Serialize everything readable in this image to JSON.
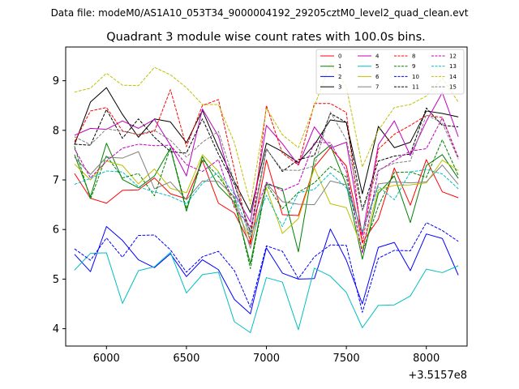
{
  "suptitle": "Data file: modeM0/AS1A10_053T34_9000004192_29205cztM0_level2_quad_clean.evt",
  "chart_data": {
    "type": "line",
    "title": "Quadrant 3 module wise count rates with 100.0s bins.",
    "xlabel": "",
    "ylabel": "",
    "x_offset_label": "+3.5157e8",
    "xlim": [
      5745,
      8255
    ],
    "ylim": [
      3.65,
      9.68
    ],
    "xticks": [
      6000,
      6500,
      7000,
      7500,
      8000
    ],
    "yticks": [
      4,
      5,
      6,
      7,
      8,
      9
    ],
    "grid": false,
    "legend_position": "top-right",
    "x": [
      5800,
      5900,
      6000,
      6100,
      6200,
      6300,
      6400,
      6500,
      6600,
      6700,
      6800,
      6900,
      7000,
      7100,
      7200,
      7300,
      7400,
      7500,
      7600,
      7700,
      7800,
      7900,
      8000,
      8100,
      8200
    ],
    "series": [
      {
        "name": "0",
        "color": "#ff0000",
        "dash": "solid",
        "values": [
          7.13,
          6.63,
          6.53,
          6.79,
          6.8,
          7.04,
          6.72,
          6.62,
          7.39,
          6.53,
          6.33,
          5.7,
          7.4,
          6.3,
          6.28,
          7.26,
          7.65,
          7.28,
          5.74,
          6.21,
          7.24,
          6.49,
          7.41,
          6.76,
          6.64
        ]
      },
      {
        "name": "1",
        "color": "#008000",
        "dash": "solid",
        "values": [
          7.51,
          6.66,
          7.74,
          7.01,
          6.84,
          7.08,
          7.64,
          6.37,
          7.47,
          6.88,
          6.55,
          5.31,
          6.92,
          6.82,
          5.55,
          7.43,
          7.7,
          6.9,
          5.4,
          6.73,
          7.08,
          6.14,
          7.29,
          7.51,
          7.03
        ]
      },
      {
        "name": "2",
        "color": "#0000ff",
        "dash": "solid",
        "values": [
          5.5,
          5.15,
          6.06,
          5.78,
          5.39,
          5.23,
          5.51,
          5.05,
          5.39,
          5.19,
          4.59,
          4.3,
          5.63,
          5.12,
          5.0,
          5.01,
          6.01,
          5.38,
          4.5,
          5.64,
          5.74,
          5.17,
          5.91,
          5.82,
          5.08
        ]
      },
      {
        "name": "3",
        "color": "#000000",
        "dash": "solid",
        "values": [
          7.71,
          8.57,
          8.86,
          8.32,
          7.86,
          8.23,
          8.17,
          7.75,
          8.4,
          7.65,
          6.97,
          6.34,
          7.74,
          7.57,
          7.35,
          7.71,
          8.21,
          8.16,
          6.72,
          8.08,
          7.65,
          7.76,
          8.39,
          8.34,
          8.27
        ]
      },
      {
        "name": "4",
        "color": "#bf00bf",
        "dash": "solid",
        "values": [
          7.9,
          8.04,
          8.02,
          8.19,
          8.04,
          8.22,
          7.7,
          7.08,
          8.43,
          7.88,
          6.73,
          6.15,
          8.1,
          7.73,
          7.3,
          8.07,
          7.64,
          7.76,
          5.88,
          7.71,
          8.19,
          7.49,
          8.18,
          8.76,
          7.87
        ]
      },
      {
        "name": "5",
        "color": "#00bfbf",
        "dash": "solid",
        "values": [
          5.18,
          5.52,
          5.53,
          4.51,
          5.17,
          5.25,
          5.54,
          4.72,
          5.09,
          5.14,
          4.14,
          3.92,
          5.03,
          4.94,
          3.98,
          5.22,
          5.06,
          4.73,
          4.02,
          4.47,
          4.48,
          4.66,
          5.2,
          5.13,
          5.27
        ]
      },
      {
        "name": "6",
        "color": "#bfbf00",
        "dash": "solid",
        "values": [
          7.32,
          7.0,
          7.38,
          7.29,
          6.92,
          7.22,
          6.83,
          6.74,
          7.51,
          7.17,
          6.48,
          5.8,
          6.84,
          5.92,
          6.22,
          7.24,
          6.52,
          6.44,
          5.61,
          6.8,
          6.89,
          6.9,
          6.94,
          7.4,
          7.19
        ]
      },
      {
        "name": "7",
        "color": "#808080",
        "dash": "solid",
        "values": [
          7.46,
          7.11,
          7.46,
          7.44,
          7.57,
          6.82,
          6.96,
          6.6,
          6.98,
          6.97,
          6.66,
          5.62,
          6.94,
          6.56,
          6.51,
          6.5,
          6.98,
          6.9,
          5.96,
          6.92,
          6.96,
          6.94,
          6.96,
          7.3,
          6.91
        ]
      },
      {
        "name": "8",
        "color": "#ff0000",
        "dash": "dashed",
        "values": [
          7.77,
          8.39,
          8.46,
          7.99,
          7.91,
          7.98,
          8.82,
          7.67,
          8.5,
          8.62,
          7.21,
          5.73,
          8.5,
          7.54,
          7.3,
          8.54,
          8.54,
          8.36,
          5.71,
          7.62,
          7.92,
          8.1,
          8.3,
          8.26,
          7.45
        ]
      },
      {
        "name": "9",
        "color": "#008000",
        "dash": "dashed",
        "values": [
          7.68,
          6.61,
          7.49,
          7.04,
          7.13,
          6.68,
          7.65,
          6.42,
          7.41,
          7.07,
          6.62,
          5.21,
          6.91,
          6.42,
          6.75,
          6.94,
          7.27,
          7.06,
          5.54,
          6.47,
          7.15,
          7.16,
          7.05,
          7.81,
          7.09
        ]
      },
      {
        "name": "10",
        "color": "#0000ff",
        "dash": "dashed",
        "values": [
          5.61,
          5.38,
          5.83,
          5.44,
          5.88,
          5.89,
          5.59,
          5.14,
          5.45,
          5.56,
          5.17,
          4.43,
          5.67,
          5.56,
          5.01,
          5.45,
          5.69,
          5.68,
          4.33,
          5.42,
          5.58,
          5.57,
          6.14,
          5.98,
          5.76
        ]
      },
      {
        "name": "11",
        "color": "#000000",
        "dash": "dashed",
        "values": [
          7.72,
          7.7,
          8.42,
          7.84,
          8.23,
          7.86,
          7.57,
          7.54,
          8.23,
          7.52,
          6.91,
          5.95,
          7.63,
          7.17,
          7.41,
          7.49,
          8.34,
          8.16,
          6.4,
          7.38,
          7.48,
          7.52,
          8.45,
          8.1,
          8.07
        ]
      },
      {
        "name": "12",
        "color": "#bf00bf",
        "dash": "dashed",
        "values": [
          7.63,
          7.04,
          7.38,
          7.64,
          7.72,
          7.69,
          7.7,
          7.31,
          7.17,
          7.41,
          6.44,
          6.06,
          6.95,
          6.78,
          6.92,
          7.76,
          7.75,
          7.17,
          5.52,
          7.18,
          7.39,
          7.58,
          7.63,
          8.25,
          7.44
        ]
      },
      {
        "name": "13",
        "color": "#00bfbf",
        "dash": "dashed",
        "values": [
          6.91,
          7.03,
          7.18,
          7.16,
          6.86,
          6.76,
          6.67,
          6.52,
          6.93,
          7.15,
          6.71,
          5.86,
          6.69,
          6.06,
          6.74,
          6.81,
          7.14,
          6.84,
          5.95,
          6.87,
          6.6,
          7.16,
          7.21,
          7.12,
          6.82
        ]
      },
      {
        "name": "14",
        "color": "#bfbf00",
        "dash": "dashed",
        "values": [
          8.77,
          8.85,
          9.15,
          8.91,
          8.9,
          9.27,
          9.12,
          8.86,
          8.52,
          8.52,
          7.75,
          6.51,
          8.45,
          7.91,
          7.65,
          8.49,
          9.35,
          8.88,
          7.26,
          8.0,
          8.46,
          8.52,
          8.69,
          9.05,
          8.57
        ]
      },
      {
        "name": "15",
        "color": "#808080",
        "dash": "dashed",
        "values": [
          7.87,
          7.71,
          8.03,
          7.98,
          7.92,
          8.0,
          7.8,
          7.46,
          7.76,
          7.98,
          6.96,
          5.91,
          7.62,
          7.2,
          7.19,
          7.28,
          8.37,
          7.81,
          6.38,
          7.2,
          7.34,
          7.38,
          8.31,
          8.15,
          7.42
        ]
      }
    ]
  }
}
